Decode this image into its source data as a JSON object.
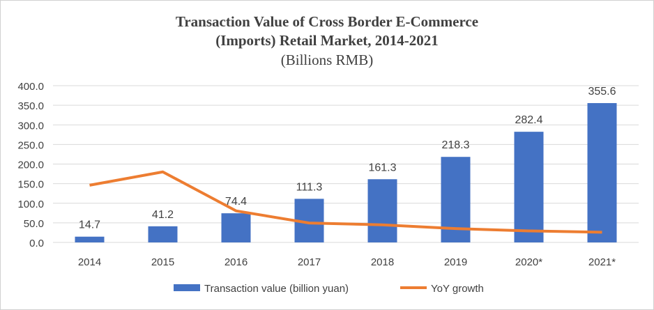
{
  "chart_data": {
    "type": "bar",
    "title_line1": "Transaction Value of Cross Border E-Commerce",
    "title_line2": "(Imports) Retail Market, 2014-2021",
    "subtitle": "(Billions RMB)",
    "categories": [
      "2014",
      "2015",
      "2016",
      "2017",
      "2018",
      "2019",
      "2020*",
      "2021*"
    ],
    "series": [
      {
        "name": "Transaction value (billion yuan)",
        "type": "bar",
        "color": "#4472C4",
        "values": [
          14.7,
          41.2,
          74.4,
          111.3,
          161.3,
          218.3,
          282.4,
          355.6
        ],
        "labels": [
          "14.7",
          "41.2",
          "74.4",
          "111.3",
          "161.3",
          "218.3",
          "282.4",
          "355.6"
        ]
      },
      {
        "name": "YoY growth",
        "type": "line",
        "color": "#ED7D31",
        "values": [
          146,
          180,
          80.6,
          49.6,
          44.9,
          35.3,
          29.4,
          25.9
        ]
      }
    ],
    "yticks": [
      "0.0",
      "50.0",
      "100.0",
      "150.0",
      "200.0",
      "250.0",
      "300.0",
      "350.0",
      "400.0"
    ],
    "ylim": [
      0,
      400
    ],
    "grid": true,
    "legend": "bottom"
  }
}
